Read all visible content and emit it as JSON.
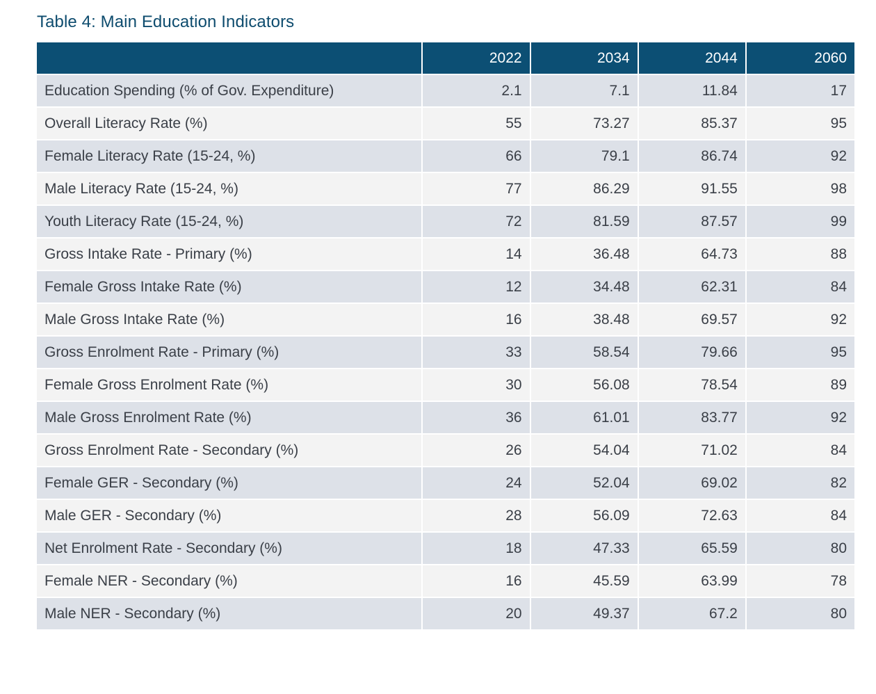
{
  "title": "Table 4: Main Education Indicators",
  "colors": {
    "title": "#0e4c6e",
    "header_bg": "#0c4f74",
    "row_odd": "#dde1e8",
    "row_even": "#f3f3f3"
  },
  "table": {
    "corner": "",
    "columns": [
      "2022",
      "2034",
      "2044",
      "2060"
    ],
    "rows": [
      {
        "label": "Education Spending (% of Gov. Expenditure)",
        "values": [
          "2.1",
          "7.1",
          "11.84",
          "17"
        ]
      },
      {
        "label": "Overall Literacy Rate (%)",
        "values": [
          "55",
          "73.27",
          "85.37",
          "95"
        ]
      },
      {
        "label": "Female Literacy Rate (15-24, %)",
        "values": [
          "66",
          "79.1",
          "86.74",
          "92"
        ]
      },
      {
        "label": "Male Literacy Rate (15-24, %)",
        "values": [
          "77",
          "86.29",
          "91.55",
          "98"
        ]
      },
      {
        "label": "Youth Literacy Rate (15-24, %)",
        "values": [
          "72",
          "81.59",
          "87.57",
          "99"
        ]
      },
      {
        "label": "Gross Intake Rate - Primary (%)",
        "values": [
          "14",
          "36.48",
          "64.73",
          "88"
        ]
      },
      {
        "label": "Female Gross Intake Rate (%)",
        "values": [
          "12",
          "34.48",
          "62.31",
          "84"
        ]
      },
      {
        "label": "Male Gross Intake Rate (%)",
        "values": [
          "16",
          "38.48",
          "69.57",
          "92"
        ]
      },
      {
        "label": "Gross Enrolment Rate - Primary (%)",
        "values": [
          "33",
          "58.54",
          "79.66",
          "95"
        ]
      },
      {
        "label": "Female Gross Enrolment Rate (%)",
        "values": [
          "30",
          "56.08",
          "78.54",
          "89"
        ]
      },
      {
        "label": "Male Gross Enrolment Rate (%)",
        "values": [
          "36",
          "61.01",
          "83.77",
          "92"
        ]
      },
      {
        "label": "Gross Enrolment Rate - Secondary (%)",
        "values": [
          "26",
          "54.04",
          "71.02",
          "84"
        ]
      },
      {
        "label": "Female GER - Secondary (%)",
        "values": [
          "24",
          "52.04",
          "69.02",
          "82"
        ]
      },
      {
        "label": "Male GER - Secondary (%)",
        "values": [
          "28",
          "56.09",
          "72.63",
          "84"
        ]
      },
      {
        "label": "Net Enrolment Rate - Secondary (%)",
        "values": [
          "18",
          "47.33",
          "65.59",
          "80"
        ]
      },
      {
        "label": "Female NER - Secondary (%)",
        "values": [
          "16",
          "45.59",
          "63.99",
          "78"
        ]
      },
      {
        "label": "Male NER - Secondary (%)",
        "values": [
          "20",
          "49.37",
          "67.2",
          "80"
        ]
      }
    ]
  }
}
